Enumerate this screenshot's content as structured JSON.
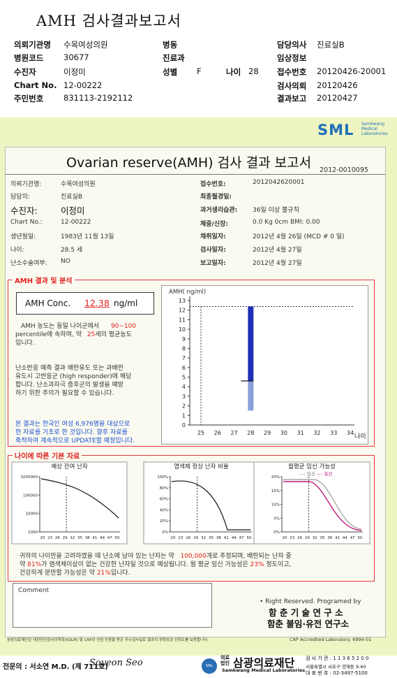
{
  "header": {
    "title": "AMH 검사결과보고서",
    "rows": [
      {
        "k1": "의뢰기관명",
        "v1": "수목여성의원",
        "k2": "병동",
        "v2": "",
        "k3": "담당의사",
        "v3": "진료실B"
      },
      {
        "k1": "병원코드",
        "v1": "30677",
        "k2": "진료과",
        "v2": "",
        "k3": "임상정보",
        "v3": ""
      },
      {
        "k1": "수진자",
        "v1": "이정미",
        "k2": "성별",
        "v2": "F",
        "k2b": "나이",
        "v2b": "28",
        "k3": "접수번호",
        "v3": "20120426-20001"
      },
      {
        "k1": "Chart No.",
        "v1": "12-00222",
        "k2": "",
        "v2": "",
        "k3": "검사의뢰",
        "v3": "20120426"
      },
      {
        "k1": "주민번호",
        "v1": "831113-2192112",
        "k2": "",
        "v2": "",
        "k3": "결과보고",
        "v3": "20120427"
      }
    ]
  },
  "logo": {
    "text": "SML",
    "sub1": "Samkwang",
    "sub2": "Medical",
    "sub3": "Laboratories"
  },
  "report": {
    "title": "Ovarian reserve(AMH) 검사 결과 보고서",
    "doc_no": "2012-0010095",
    "left": [
      {
        "k": "의뢰기관명:",
        "v": "수목여성의원"
      },
      {
        "k": "담당의:",
        "v": "진료실B"
      },
      {
        "k": "수진자:",
        "v": "이정미"
      },
      {
        "k": "Chart No.:",
        "v": "12-00222"
      },
      {
        "k": "생년월일:",
        "v": "1983년 11월 13일"
      },
      {
        "k": "나이:",
        "v": "28.5 세"
      },
      {
        "k": "난소수술여부:",
        "v": "NO"
      }
    ],
    "right": [
      {
        "k": "접수번호:",
        "v": "2012042620001"
      },
      {
        "k": "최종월경일:",
        "v": ""
      },
      {
        "k": "과거생리습관:",
        "v": "36일 이상 불규칙"
      },
      {
        "k": "체중/신장:",
        "v": "0.0 Kg     0cm   BMI:   0.00"
      },
      {
        "k": "채취일자:",
        "v": "2012년 4월 26일   (MCD #  0 일)"
      },
      {
        "k": "검사일자:",
        "v": "2012년 4월 27일"
      },
      {
        "k": "보고일자:",
        "v": "2012년 4월 27일"
      }
    ]
  },
  "amh": {
    "section": "AMH 결과 및 분석",
    "conc_label": "AMH Conc.",
    "conc_value": "12.38",
    "conc_unit": "ng/ml",
    "p1a": "AMH 농도는 동일 나이군에서",
    "p1b": "90~100",
    "p1c": "percentile에 속하며, 약",
    "p1d": "25",
    "p1e": "세의 평균농도",
    "p1f": "입니다.",
    "p2": [
      "난소반응 예측 결과 배란유도 또는 과배란",
      "유도시 고반응군 (high responder)에 해당",
      "합니다. 난소과자극 증후군의 발생을 예방",
      "하기 위한 주의가 필요할 수 있습니다."
    ],
    "p3": [
      "본 결과는 한국인 여성 6,976명을 대상으로",
      "한 자료를 기초로 한 것입니다. 향후 자료를",
      "축적하여 계속적으로 UPDATE할 예정입니다."
    ]
  },
  "chart_data": [
    {
      "type": "bar",
      "ylabel": "AMH( ng/ml)",
      "xlabel": "나이",
      "ylim": [
        0,
        13
      ],
      "x": [
        25,
        26,
        27,
        28,
        29,
        30,
        31,
        32,
        33,
        34
      ],
      "y_ticks": [
        0,
        1,
        2,
        3,
        4,
        5,
        6,
        7,
        8,
        9,
        10,
        11,
        12,
        13
      ],
      "patient_value": 12.38,
      "patient_age": 25,
      "range_bar": {
        "age": 28,
        "upper_dark_from": 4.6,
        "upper_dark_to": 12.38,
        "lower_light_from": 1.5,
        "lower_light_to": 4.6
      }
    },
    {
      "type": "line",
      "title": "예상 잔여 난자",
      "x_ticks": [
        "20",
        "23",
        "26",
        "29",
        "32",
        "35",
        "38",
        "41",
        "44",
        "47",
        "50"
      ],
      "y_ticks": [
        "1000000",
        "100000",
        "10000",
        "1000"
      ]
    },
    {
      "type": "line",
      "title": "염색체 정상 난자 비율",
      "x_ticks": [
        "20",
        "23",
        "26",
        "29",
        "32",
        "35",
        "38",
        "41",
        "44",
        "47",
        "50"
      ],
      "y_ticks": [
        "100%",
        "80%",
        "60%",
        "40%",
        "20%",
        "0%"
      ]
    },
    {
      "type": "line",
      "title": "월평균 임신 가능성",
      "legend": [
        "임신",
        "출산"
      ],
      "x_ticks": [
        "20",
        "23",
        "26",
        "29",
        "32",
        "35",
        "38",
        "41",
        "44",
        "47",
        "50"
      ],
      "y_ticks": [
        "20%",
        "15%",
        "10%",
        "5%",
        "0%"
      ]
    }
  ],
  "age_section": {
    "title": "나이에 따른 기본 자료",
    "s1a": "귀하의 나이만을 고려하였을 때 난소에 남아 있는 난자는 약",
    "s1b": "100,000",
    "s1c": "개로 추정되며, 배란되는 난자 중",
    "s2a": "약",
    "s2b": "81%",
    "s2c": "가 염색체이상이 없는 건강한 난자일 것으로 예상됩니다. 월 평균 임신 가능성은",
    "s2d": "23%",
    "s2e": "정도이고,",
    "s3a": "건강하게 분만할 가능성은 약",
    "s3b": "21%",
    "s3c": "입니다."
  },
  "comment": {
    "label": "Comment",
    "rights": "• Right Reserved. Programed by",
    "inst1": "함 춘 기 술 연 구 소",
    "inst2": "함춘 불임·유전 연구소"
  },
  "footer": {
    "note": "삼광의료재단은 대한진단검사의학회(KSLM) 및 CAP의 신임 인증을 받은 우수검사실로 결과의 정확성과 신뢰도를 보증합니다.",
    "cap": "CAP  Accredited  Laboratory.  6994-01",
    "doctor_label": "전문의 : 서소연 M.D. (제 711호)",
    "signature": "Soyeon Seo",
    "corp_small1": "의료",
    "corp_small2": "법인",
    "corp": "삼광의료재단",
    "corp_en": "Samkwang Medical Laboratories",
    "code": "검 사 기 관 : 1 1 3 6 5 2 0 0",
    "addr": "서울특별시 서초구 양재동 9-60",
    "tel": "대 표 번 호 : 02-3497-5100"
  }
}
